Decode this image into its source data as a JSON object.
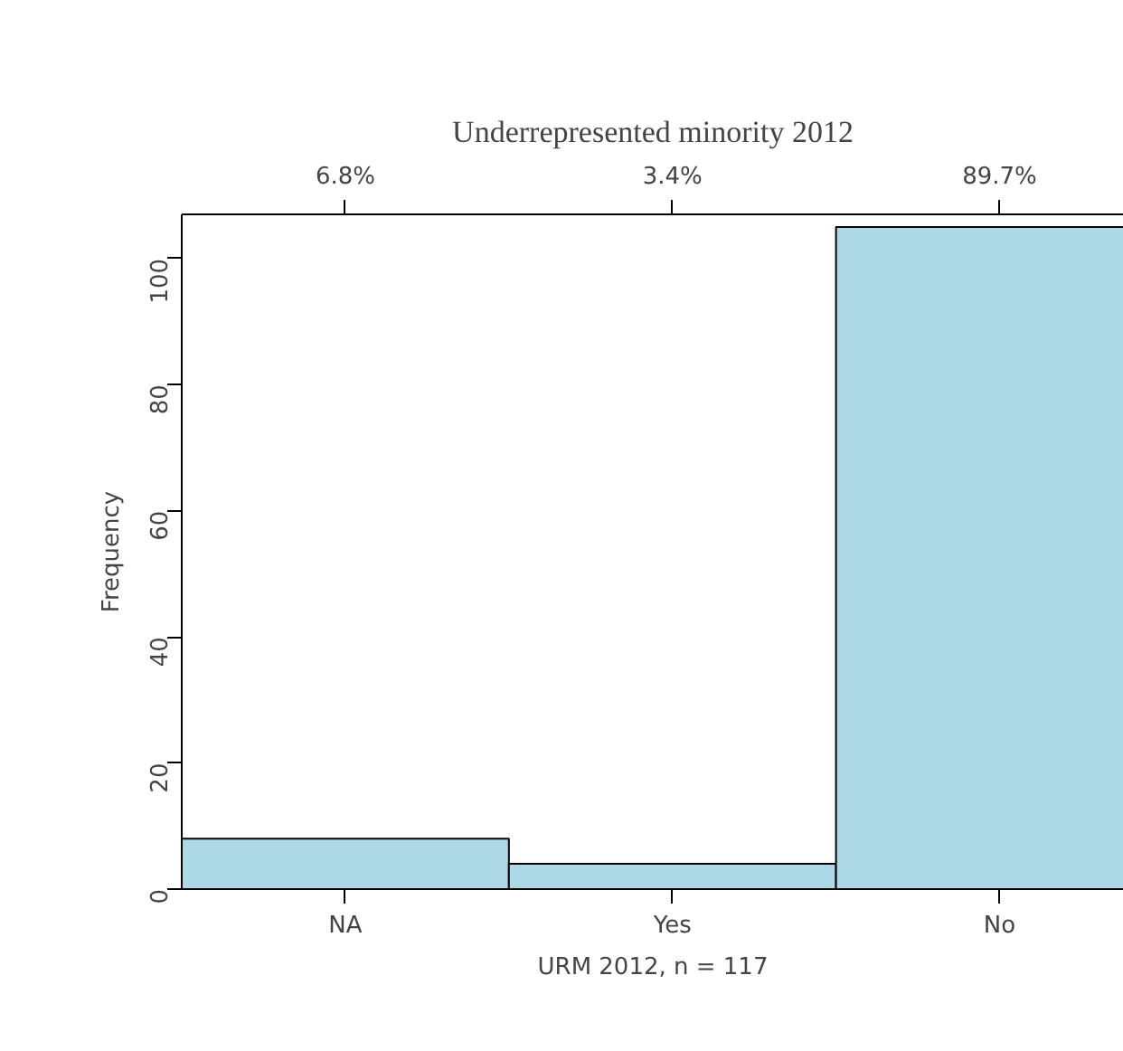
{
  "chart_data": {
    "type": "bar",
    "title": "Underrepresented minority 2012",
    "xlabel": "URM 2012, n = 117",
    "ylabel": "Frequency",
    "categories": [
      "NA",
      "Yes",
      "No"
    ],
    "values": [
      8,
      4,
      105
    ],
    "color": "#add8e6",
    "annotations": [
      "6.8%",
      "3.4%",
      "89.7%"
    ],
    "ylim": [
      0,
      107
    ],
    "yticks": [
      0,
      20,
      40,
      60,
      80,
      100
    ],
    "grid": false
  }
}
